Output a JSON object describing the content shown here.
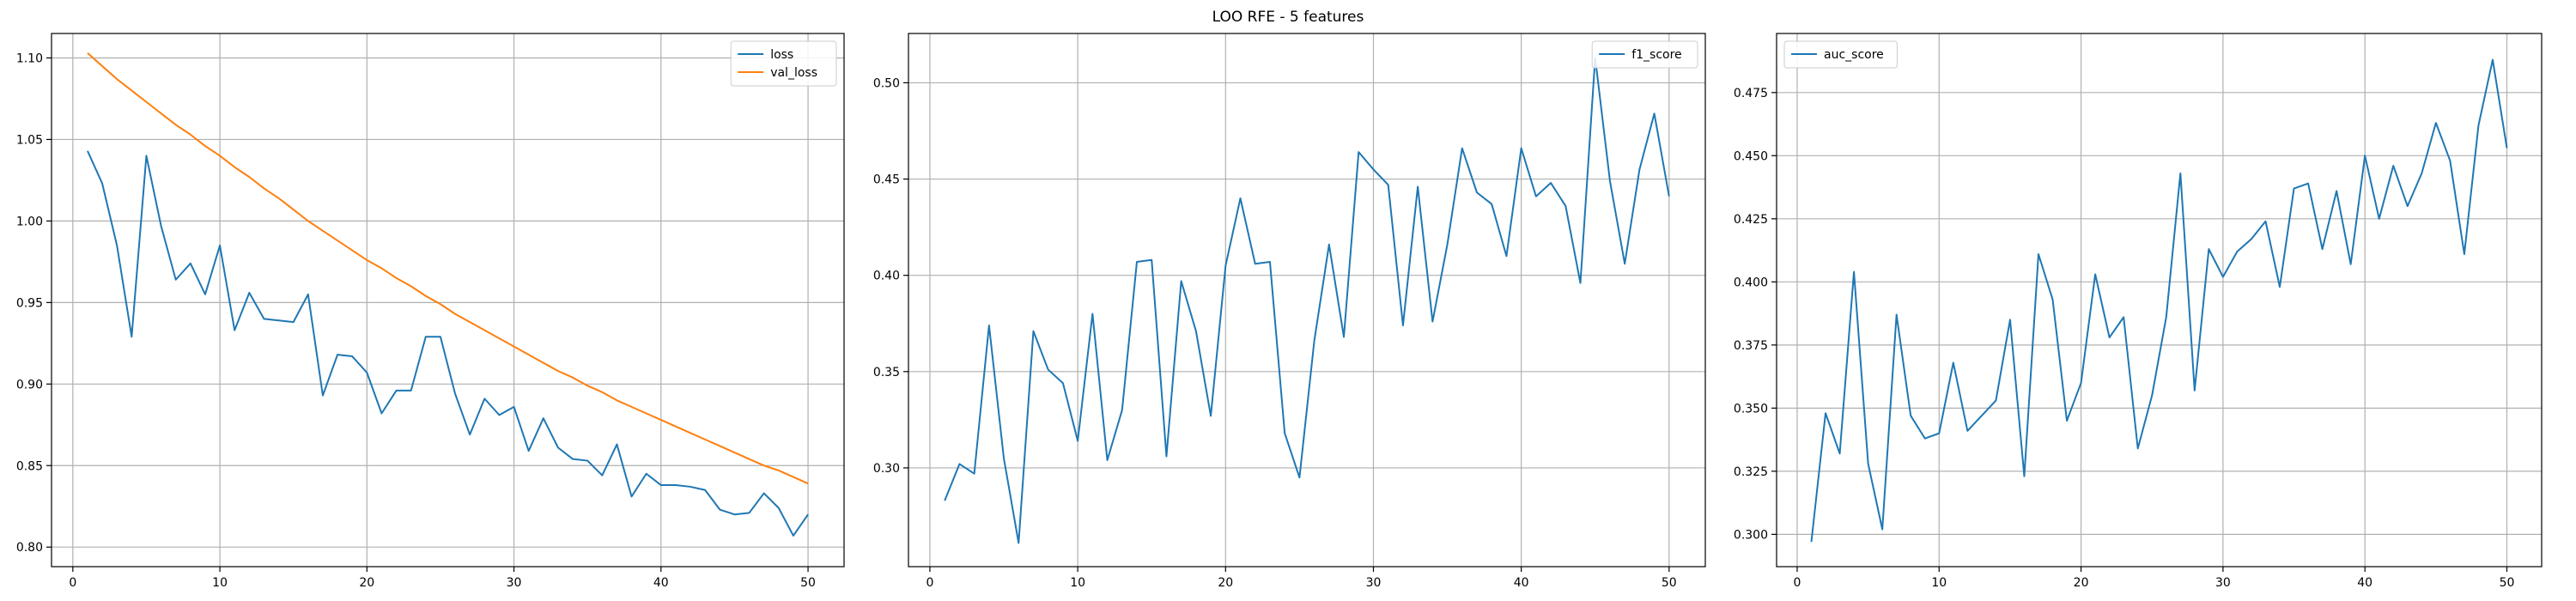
{
  "title": "LOO RFE - 5 features",
  "colors": {
    "blue": "#1f77b4",
    "orange": "#ff7f0e"
  },
  "chart_data": [
    {
      "type": "line",
      "xlim": [
        -1.45,
        52.45
      ],
      "ylim": [
        0.788,
        1.115
      ],
      "xticks": [
        0,
        10,
        20,
        30,
        40,
        50
      ],
      "yticks": [
        0.8,
        0.85,
        0.9,
        0.95,
        1.0,
        1.05,
        1.1
      ],
      "yticks_labels": [
        "0.80",
        "0.85",
        "0.90",
        "0.95",
        "1.00",
        "1.05",
        "1.10"
      ],
      "grid": true,
      "legend": "upper right",
      "x": [
        1,
        2,
        3,
        4,
        5,
        6,
        7,
        8,
        9,
        10,
        11,
        12,
        13,
        14,
        15,
        16,
        17,
        18,
        19,
        20,
        21,
        22,
        23,
        24,
        25,
        26,
        27,
        28,
        29,
        30,
        31,
        32,
        33,
        34,
        35,
        36,
        37,
        38,
        39,
        40,
        41,
        42,
        43,
        44,
        45,
        46,
        47,
        48,
        49,
        50
      ],
      "series": [
        {
          "name": "loss",
          "color": "#1f77b4",
          "values": [
            1.043,
            1.023,
            0.985,
            0.929,
            1.04,
            0.997,
            0.964,
            0.974,
            0.955,
            0.985,
            0.933,
            0.956,
            0.94,
            0.939,
            0.938,
            0.955,
            0.893,
            0.918,
            0.917,
            0.907,
            0.882,
            0.896,
            0.896,
            0.929,
            0.929,
            0.894,
            0.869,
            0.891,
            0.881,
            0.886,
            0.859,
            0.879,
            0.861,
            0.854,
            0.853,
            0.844,
            0.863,
            0.831,
            0.845,
            0.838,
            0.838,
            0.837,
            0.835,
            0.823,
            0.82,
            0.821,
            0.833,
            0.824,
            0.807,
            0.82
          ]
        },
        {
          "name": "val_loss",
          "color": "#ff7f0e",
          "values": [
            1.103,
            1.095,
            1.087,
            1.08,
            1.073,
            1.066,
            1.059,
            1.053,
            1.046,
            1.04,
            1.033,
            1.027,
            1.02,
            1.014,
            1.007,
            1.0,
            0.994,
            0.988,
            0.982,
            0.976,
            0.971,
            0.965,
            0.96,
            0.954,
            0.949,
            0.943,
            0.938,
            0.933,
            0.928,
            0.923,
            0.918,
            0.913,
            0.908,
            0.904,
            0.899,
            0.895,
            0.89,
            0.886,
            0.882,
            0.878,
            0.874,
            0.87,
            0.866,
            0.862,
            0.858,
            0.854,
            0.85,
            0.847,
            0.843,
            0.839
          ]
        }
      ]
    },
    {
      "type": "line",
      "xlim": [
        -1.45,
        52.45
      ],
      "ylim": [
        0.2487,
        0.5256
      ],
      "xticks": [
        0,
        10,
        20,
        30,
        40,
        50
      ],
      "yticks": [
        0.3,
        0.35,
        0.4,
        0.45,
        0.5
      ],
      "yticks_labels": [
        "0.30",
        "0.35",
        "0.40",
        "0.45",
        "0.50"
      ],
      "grid": true,
      "legend": "upper right",
      "x": [
        1,
        2,
        3,
        4,
        5,
        6,
        7,
        8,
        9,
        10,
        11,
        12,
        13,
        14,
        15,
        16,
        17,
        18,
        19,
        20,
        21,
        22,
        23,
        24,
        25,
        26,
        27,
        28,
        29,
        30,
        31,
        32,
        33,
        34,
        35,
        36,
        37,
        38,
        39,
        40,
        41,
        42,
        43,
        44,
        45,
        46,
        47,
        48,
        49,
        50
      ],
      "series": [
        {
          "name": "f1_score",
          "color": "#1f77b4",
          "values": [
            0.283,
            0.302,
            0.297,
            0.374,
            0.305,
            0.261,
            0.371,
            0.351,
            0.344,
            0.314,
            0.38,
            0.304,
            0.33,
            0.407,
            0.408,
            0.306,
            0.397,
            0.371,
            0.327,
            0.405,
            0.44,
            0.406,
            0.407,
            0.318,
            0.295,
            0.366,
            0.416,
            0.368,
            0.464,
            0.455,
            0.447,
            0.374,
            0.446,
            0.376,
            0.416,
            0.466,
            0.443,
            0.437,
            0.41,
            0.466,
            0.441,
            0.448,
            0.436,
            0.396,
            0.513,
            0.449,
            0.406,
            0.455,
            0.484,
            0.441
          ]
        }
      ]
    },
    {
      "type": "line",
      "xlim": [
        -1.45,
        52.45
      ],
      "ylim": [
        0.2872,
        0.4984
      ],
      "xticks": [
        0,
        10,
        20,
        30,
        40,
        50
      ],
      "yticks": [
        0.3,
        0.325,
        0.35,
        0.375,
        0.4,
        0.425,
        0.45,
        0.475
      ],
      "yticks_labels": [
        "0.300",
        "0.325",
        "0.350",
        "0.375",
        "0.400",
        "0.425",
        "0.450",
        "0.475"
      ],
      "grid": true,
      "legend": "upper left",
      "x": [
        1,
        2,
        3,
        4,
        5,
        6,
        7,
        8,
        9,
        10,
        11,
        12,
        13,
        14,
        15,
        16,
        17,
        18,
        19,
        20,
        21,
        22,
        23,
        24,
        25,
        26,
        27,
        28,
        29,
        30,
        31,
        32,
        33,
        34,
        35,
        36,
        37,
        38,
        39,
        40,
        41,
        42,
        43,
        44,
        45,
        46,
        47,
        48,
        49,
        50
      ],
      "series": [
        {
          "name": "auc_score",
          "color": "#1f77b4",
          "values": [
            0.297,
            0.348,
            0.332,
            0.404,
            0.328,
            0.302,
            0.387,
            0.347,
            0.338,
            0.34,
            0.368,
            0.341,
            0.347,
            0.353,
            0.385,
            0.323,
            0.411,
            0.393,
            0.345,
            0.36,
            0.403,
            0.378,
            0.386,
            0.334,
            0.355,
            0.386,
            0.443,
            0.357,
            0.413,
            0.402,
            0.412,
            0.417,
            0.424,
            0.398,
            0.437,
            0.439,
            0.413,
            0.436,
            0.407,
            0.45,
            0.425,
            0.446,
            0.43,
            0.443,
            0.463,
            0.448,
            0.411,
            0.462,
            0.488,
            0.453
          ]
        }
      ]
    }
  ]
}
